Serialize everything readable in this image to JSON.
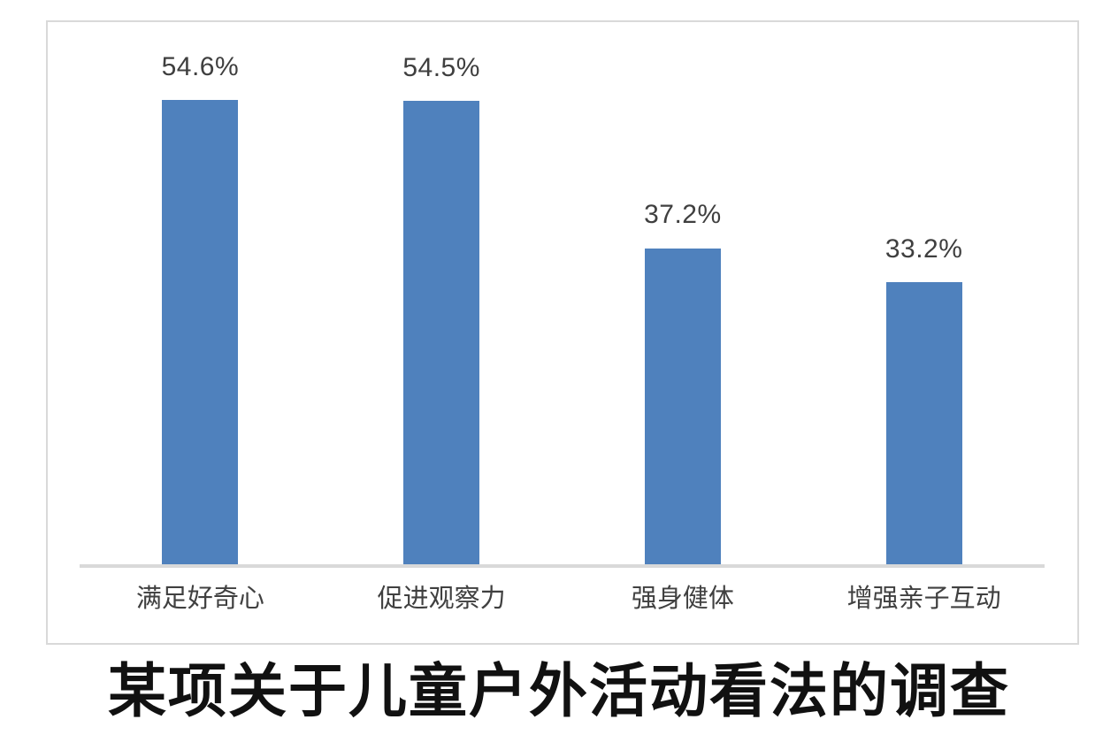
{
  "title": "某项关于儿童户外活动看法的调查",
  "colors": {
    "bar": "#4f81bd",
    "axis_line": "#d9d9d9",
    "frame_border": "#d9d9d9",
    "value_label": "#3f3f3f",
    "category_label": "#404040",
    "title": "#111111",
    "background": "#ffffff"
  },
  "chart_data": {
    "type": "bar",
    "categories": [
      "满足好奇心",
      "促进观察力",
      "强身健体",
      "增强亲子互动"
    ],
    "values": [
      54.6,
      54.5,
      37.2,
      33.2
    ],
    "value_labels": [
      "54.6%",
      "54.5%",
      "37.2%",
      "33.2%"
    ],
    "title": "某项关于儿童户外活动看法的调查",
    "xlabel": "",
    "ylabel": "",
    "ylim": [
      0,
      63.8
    ],
    "grid": false,
    "legend": false,
    "y_axis_visible": false,
    "bar_color": "#4f81bd",
    "data_labels_position": "above-bar"
  }
}
